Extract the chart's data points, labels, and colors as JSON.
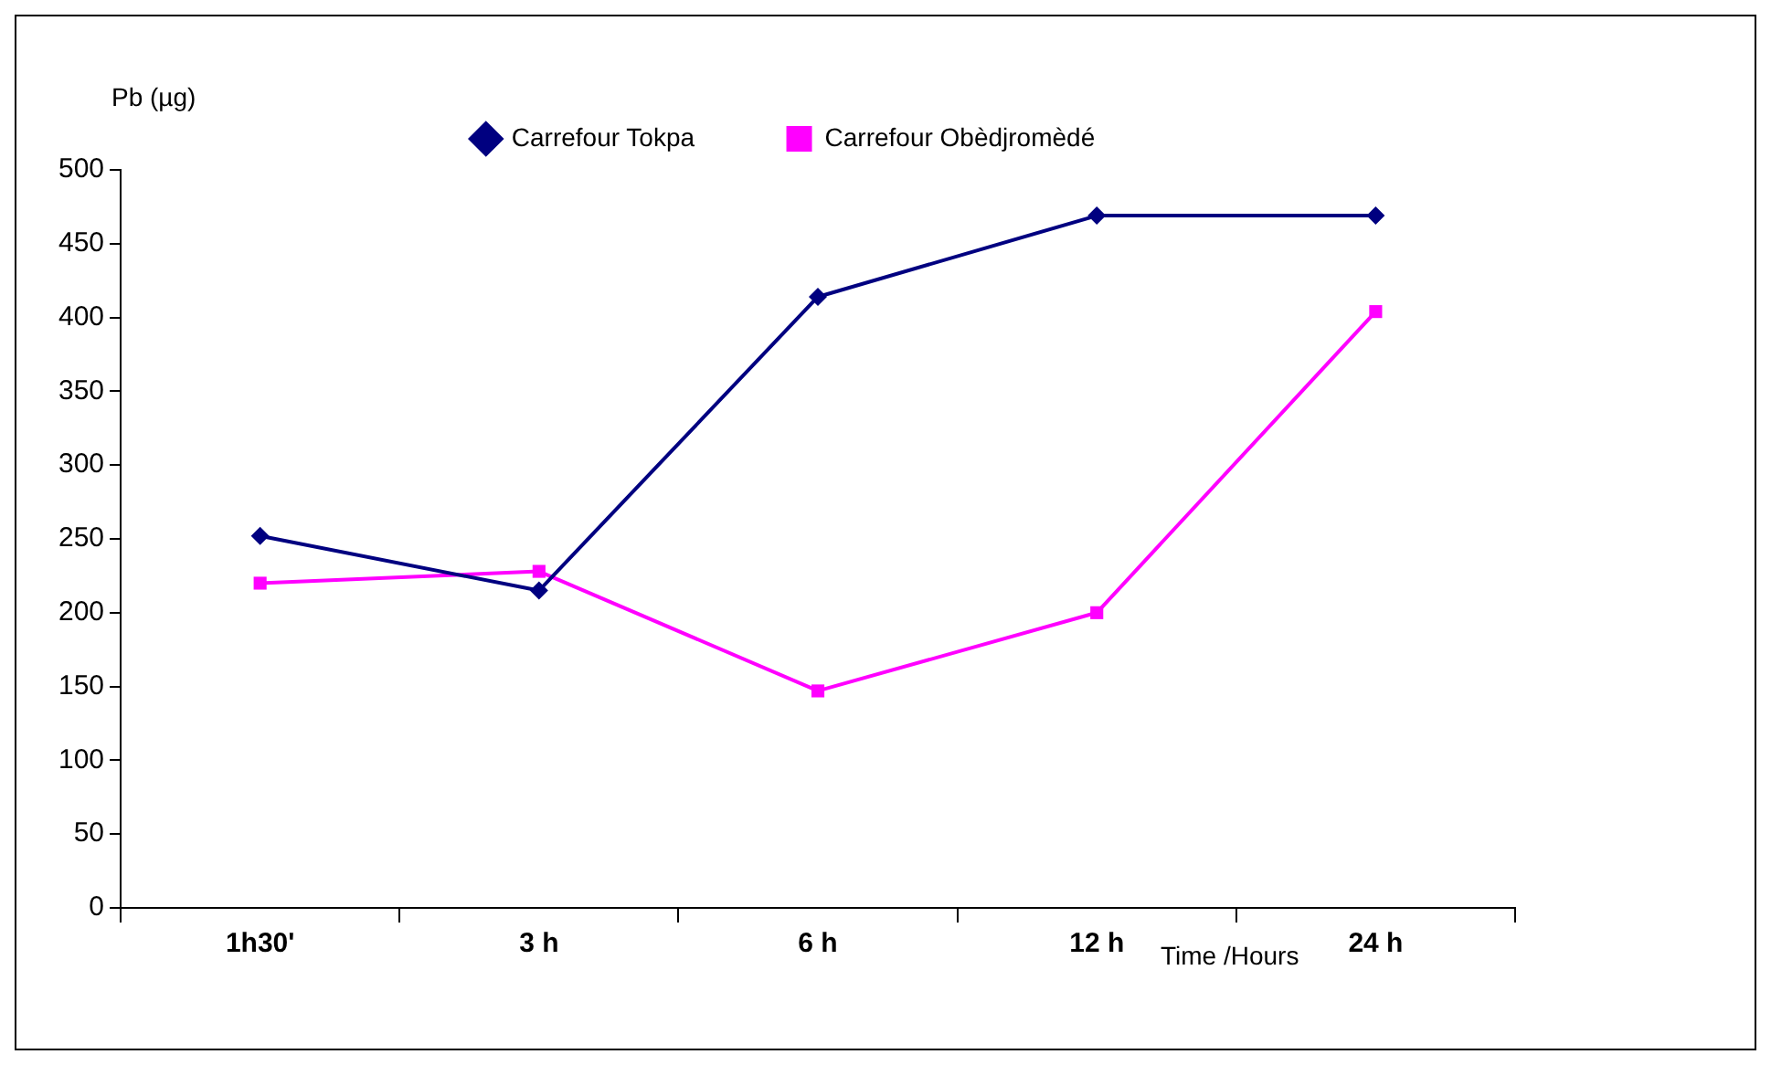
{
  "chart_data": {
    "type": "line",
    "xlabel": "Time /Hours",
    "ylabel": "Pb  (µg)",
    "categories": [
      "1h30'",
      "3 h",
      "6 h",
      "12 h",
      "24 h"
    ],
    "series": [
      {
        "name": "Carrefour Tokpa",
        "color": "#000080",
        "marker": "diamond",
        "values": [
          252,
          215,
          414,
          469,
          469
        ]
      },
      {
        "name": "Carrefour Obèdjromèdé",
        "color": "#ff00ff",
        "marker": "square",
        "values": [
          220,
          228,
          147,
          200,
          404
        ]
      }
    ],
    "ylim": [
      0,
      500
    ],
    "yticks": [
      0,
      50,
      100,
      150,
      200,
      250,
      300,
      350,
      400,
      450,
      500
    ],
    "grid": false,
    "legend": "top"
  }
}
